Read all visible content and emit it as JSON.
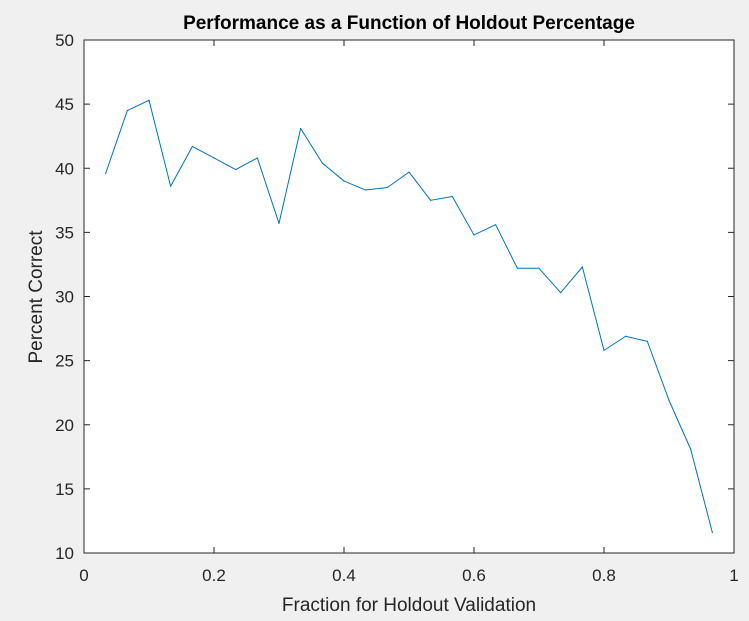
{
  "chart_data": {
    "type": "line",
    "title": "Performance as a Function of Holdout Percentage",
    "xlabel": "Fraction for Holdout Validation",
    "ylabel": "Percent Correct",
    "xlim": [
      0,
      1
    ],
    "ylim": [
      10,
      50
    ],
    "xticks": [
      0,
      0.2,
      0.4,
      0.6,
      0.8,
      1
    ],
    "xtick_labels": [
      "0",
      "0.2",
      "0.4",
      "0.6",
      "0.8",
      "1"
    ],
    "yticks": [
      10,
      15,
      20,
      25,
      30,
      35,
      40,
      45,
      50
    ],
    "ytick_labels": [
      "10",
      "15",
      "20",
      "25",
      "30",
      "35",
      "40",
      "45",
      "50"
    ],
    "grid": false,
    "legend": "none",
    "series": [
      {
        "color": "#0072bd",
        "x": [
          0.0333,
          0.0667,
          0.1,
          0.1333,
          0.1667,
          0.2,
          0.2333,
          0.2667,
          0.3,
          0.3333,
          0.3667,
          0.4,
          0.4333,
          0.4667,
          0.5,
          0.5333,
          0.5667,
          0.6,
          0.6333,
          0.6667,
          0.7,
          0.7333,
          0.7667,
          0.8,
          0.8333,
          0.8667,
          0.9,
          0.9333,
          0.9667
        ],
        "y": [
          39.6,
          44.5,
          45.3,
          38.6,
          41.7,
          40.8,
          39.9,
          40.8,
          35.7,
          43.1,
          40.4,
          39.0,
          38.3,
          38.5,
          39.7,
          37.5,
          37.8,
          34.8,
          35.6,
          32.2,
          32.2,
          30.3,
          32.3,
          25.8,
          26.9,
          26.5,
          21.9,
          18.1,
          11.6
        ]
      }
    ]
  },
  "colors": {
    "figure_background": "#f0f0f0",
    "axes_background": "#ffffff",
    "axis_color": "#262626",
    "line_color": "#0072bd"
  }
}
